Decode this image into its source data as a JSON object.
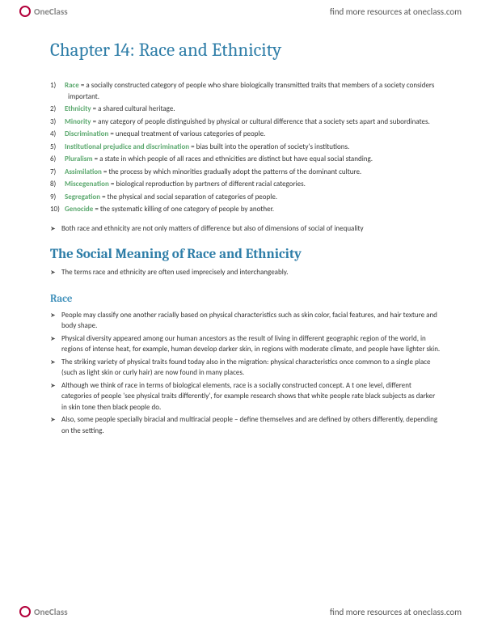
{
  "brand": {
    "name": "OneClass",
    "tagline": "find more resources at oneclass.com"
  },
  "chapter": {
    "title": "Chapter 14: Race and Ethnicity"
  },
  "definitions": [
    {
      "n": "1)",
      "term": "Race",
      "def": " = a socially constructed category of people who share biologically transmitted traits that members of a society considers important."
    },
    {
      "n": "2)",
      "term": "Ethnicity",
      "def": " = a shared cultural heritage."
    },
    {
      "n": "3)",
      "term": "Minority",
      "def": " = any category of people distinguished by physical or cultural difference that a society sets apart and subordinates."
    },
    {
      "n": "4)",
      "term": "Discrimination",
      "def": " = unequal treatment of various categories of people."
    },
    {
      "n": "5)",
      "term": "Institutional prejudice and discrimination",
      "def": " = bias built into the operation of society's institutions."
    },
    {
      "n": "6)",
      "term": "Pluralism",
      "def": " = a state in which people of all races and ethnicities are distinct but have equal social standing."
    },
    {
      "n": "7)",
      "term": "Assimilation",
      "def": " = the process by which minorities gradually adopt the patterns of the dominant culture."
    },
    {
      "n": "8)",
      "term": "Miscegenation",
      "def": " = biological reproduction by partners of different racial categories."
    },
    {
      "n": "9)",
      "term": "Segregation",
      "def": " = the physical and social separation of categories of people."
    },
    {
      "n": "10)",
      "term": "Genocide",
      "def": " = the systematic killing of one category of people by another."
    }
  ],
  "summary_bullets": [
    "Both race and ethnicity are not only matters of difference but also of dimensions of social of inequality"
  ],
  "section": {
    "title": "The Social Meaning of Race and Ethnicity",
    "intro_bullets": [
      "The terms race and ethnicity are often used imprecisely and interchangeably."
    ],
    "subsection": {
      "title": "Race",
      "bullets": [
        "People may classify one another racially based on physical characteristics such as skin color, facial features, and hair texture and body shape.",
        "Physical diversity appeared among our human ancestors as the result of living in different geographic region of the world, in regions of intense heat, for example, human develop darker skin, in regions with moderate climate, and people have lighter skin.",
        "The striking variety of physical traits found today also in the migration: physical characteristics once common to a single place (such as light skin or curly hair) are now found in many places.",
        "Although we think of race in terms of biological elements, race is a socially constructed concept. A t one level, different categories of people 'see physical traits differently', for example research shows that white people rate black subjects as darker in skin tone then black people do.",
        "Also, some people specially biracial and multiracial people – define themselves and are defined by others differently, depending on the setting."
      ]
    }
  },
  "colors": {
    "heading": "#2f7ea8",
    "subheading": "#4694bd",
    "term": "#5ba86e",
    "body": "#333333",
    "logo_accent": "#b3003b"
  }
}
